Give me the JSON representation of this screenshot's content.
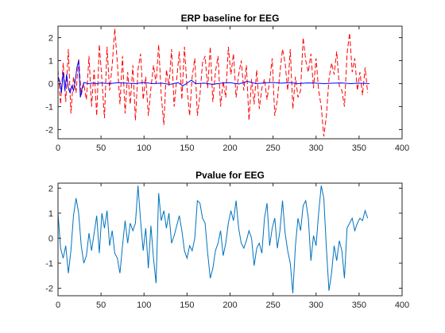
{
  "chart_data": [
    {
      "type": "line",
      "title": "ERP baseline for EEG",
      "xlabel": "",
      "ylabel": "",
      "xlim": [
        0,
        400
      ],
      "ylim": [
        -2.4,
        2.5
      ],
      "xticks": [
        0,
        50,
        100,
        150,
        200,
        250,
        300,
        350,
        400
      ],
      "yticks": [
        -2,
        -1,
        0,
        1,
        2
      ],
      "grid": false,
      "series": [
        {
          "color": "#ff0000",
          "style": "dashed",
          "x": [
            0,
            3,
            6,
            9,
            12,
            15,
            18,
            21,
            24,
            27,
            30,
            33,
            36,
            39,
            42,
            45,
            48,
            51,
            54,
            57,
            60,
            63,
            66,
            69,
            72,
            75,
            78,
            81,
            84,
            87,
            90,
            93,
            96,
            99,
            102,
            105,
            108,
            111,
            114,
            117,
            120,
            123,
            126,
            129,
            132,
            135,
            138,
            141,
            144,
            147,
            150,
            153,
            156,
            159,
            162,
            165,
            168,
            171,
            174,
            177,
            180,
            183,
            186,
            189,
            192,
            195,
            198,
            201,
            204,
            207,
            210,
            213,
            216,
            219,
            222,
            225,
            228,
            231,
            234,
            237,
            240,
            243,
            246,
            249,
            252,
            255,
            258,
            261,
            264,
            267,
            270,
            273,
            276,
            279,
            282,
            285,
            288,
            291,
            294,
            297,
            300,
            303,
            306,
            309,
            312,
            315,
            318,
            321,
            324,
            327,
            330,
            333,
            336,
            339,
            342,
            345,
            348,
            351,
            354,
            357,
            360
          ],
          "y": [
            0.6,
            -0.9,
            0.9,
            -0.8,
            1.5,
            -1.3,
            0.3,
            -0.4,
            1.1,
            -0.5,
            0.0,
            -0.7,
            1.2,
            -1.0,
            0.6,
            -1.4,
            1.7,
            0.2,
            -1.5,
            1.6,
            -0.3,
            0.8,
            2.4,
            0.9,
            -0.9,
            1.2,
            -1.3,
            0.5,
            -0.9,
            0.8,
            -1.6,
            0.6,
            1.3,
            -0.7,
            0.3,
            -1.4,
            -0.2,
            0.8,
            0.0,
            1.7,
            -0.5,
            -1.8,
            0.6,
            -0.1,
            1.5,
            -1.0,
            0.2,
            1.4,
            -0.7,
            1.6,
            -0.2,
            -1.4,
            0.3,
            1.1,
            -1.4,
            -0.5,
            0.9,
            1.2,
            -0.2,
            1.6,
            -0.8,
            0.5,
            1.2,
            -1.0,
            0.1,
            -0.6,
            1.6,
            0.4,
            1.3,
            -0.6,
            0.4,
            1.0,
            -0.3,
            0.8,
            -1.6,
            0.2,
            -0.9,
            0.6,
            -1.1,
            -0.2,
            0.2,
            -0.7,
            0.1,
            1.1,
            -1.4,
            -0.7,
            0.5,
            1.5,
            0.9,
            -0.3,
            1.5,
            -1.1,
            0.3,
            -0.6,
            -0.3,
            2.0,
            1.0,
            0.5,
            1.3,
            -0.2,
            1.1,
            -0.3,
            -1.0,
            -2.3,
            -1.4,
            0.2,
            0.9,
            0.4,
            1.4,
            -0.1,
            -0.3,
            -1.0,
            1.3,
            2.2,
            0.5,
            1.1,
            -0.3,
            0.5,
            -0.5,
            0.7,
            -0.4
          ]
        },
        {
          "color": "#0000ff",
          "style": "solid",
          "x": [
            0,
            2,
            4,
            6,
            8,
            10,
            12,
            14,
            16,
            18,
            20,
            22,
            24,
            26,
            28,
            30,
            35,
            40,
            45,
            50,
            60,
            70,
            80,
            90,
            100,
            110,
            120,
            130,
            140,
            145,
            150,
            155,
            160,
            170,
            180,
            190,
            200,
            210,
            220,
            230,
            240,
            250,
            260,
            270,
            280,
            290,
            300,
            310,
            320,
            330,
            340,
            350,
            362
          ],
          "y": [
            0.3,
            0.1,
            -0.4,
            0.5,
            -0.3,
            0.4,
            -0.2,
            -0.4,
            -0.1,
            -0.3,
            0.1,
            0.7,
            1.0,
            -0.6,
            -0.2,
            0.05,
            0.0,
            0.02,
            0.0,
            0.03,
            0.0,
            0.04,
            0.02,
            0.0,
            0.05,
            0.0,
            0.02,
            -0.03,
            0.04,
            -0.1,
            0.02,
            0.15,
            0.0,
            0.02,
            -0.03,
            0.02,
            0.04,
            -0.02,
            0.1,
            0.0,
            0.03,
            0.05,
            0.02,
            0.04,
            0.0,
            0.03,
            0.02,
            0.0,
            0.02,
            0.03,
            0.0,
            0.02,
            0.0
          ]
        }
      ]
    },
    {
      "type": "line",
      "title": "Pvalue for EEG",
      "xlabel": "",
      "ylabel": "",
      "xlim": [
        0,
        400
      ],
      "ylim": [
        -2.3,
        2.2
      ],
      "xticks": [
        0,
        50,
        100,
        150,
        200,
        250,
        300,
        350,
        400
      ],
      "yticks": [
        -2,
        -1,
        0,
        1,
        2
      ],
      "grid": false,
      "series": [
        {
          "color": "#0072bd",
          "style": "solid",
          "x": [
            0,
            3,
            6,
            9,
            12,
            15,
            18,
            21,
            24,
            27,
            30,
            33,
            36,
            39,
            42,
            45,
            48,
            51,
            54,
            57,
            60,
            63,
            66,
            69,
            72,
            75,
            78,
            81,
            84,
            87,
            90,
            93,
            96,
            99,
            102,
            105,
            108,
            111,
            114,
            117,
            120,
            123,
            126,
            129,
            132,
            135,
            138,
            141,
            144,
            147,
            150,
            153,
            156,
            159,
            162,
            165,
            168,
            171,
            174,
            177,
            180,
            183,
            186,
            189,
            192,
            195,
            198,
            201,
            204,
            207,
            210,
            213,
            216,
            219,
            222,
            225,
            228,
            231,
            234,
            237,
            240,
            243,
            246,
            249,
            252,
            255,
            258,
            261,
            264,
            267,
            270,
            273,
            276,
            279,
            282,
            285,
            288,
            291,
            294,
            297,
            300,
            303,
            306,
            309,
            312,
            315,
            318,
            321,
            324,
            327,
            330,
            333,
            336,
            339,
            342,
            345,
            348,
            351,
            354,
            357,
            360
          ],
          "y": [
            1.0,
            -0.4,
            -0.8,
            -0.3,
            -1.4,
            -0.5,
            0.9,
            1.6,
            1.0,
            -0.3,
            -1.0,
            -0.7,
            0.2,
            -0.5,
            0.2,
            0.9,
            -0.6,
            1.0,
            0.4,
            1.1,
            -0.3,
            0.3,
            -0.6,
            -0.8,
            -1.4,
            -0.3,
            0.7,
            -0.2,
            0.6,
            0.3,
            0.6,
            2.1,
            0.7,
            -0.5,
            0.4,
            -1.2,
            0.5,
            -0.8,
            -1.8,
            1.8,
            0.7,
            1.1,
            0.4,
            1.0,
            -0.2,
            0.1,
            0.5,
            0.9,
            0.3,
            -0.5,
            -0.8,
            -0.3,
            -0.5,
            0.0,
            1.5,
            1.4,
            0.8,
            0.6,
            -0.6,
            -1.6,
            -1.2,
            -0.5,
            -0.2,
            0.3,
            -0.7,
            -0.2,
            0.6,
            1.1,
            0.7,
            1.5,
            0.4,
            -0.2,
            -0.4,
            -0.1,
            0.3,
            0.0,
            -1.1,
            -0.4,
            -0.2,
            -0.6,
            0.8,
            1.4,
            -0.3,
            0.4,
            0.8,
            -0.4,
            0.3,
            1.5,
            0.2,
            -0.5,
            -1.0,
            -2.2,
            -0.3,
            0.8,
            0.3,
            1.3,
            1.5,
            0.8,
            -0.9,
            0.1,
            -0.3,
            1.0,
            2.1,
            1.6,
            -0.4,
            -2.1,
            -1.4,
            -0.3,
            -0.9,
            -0.1,
            -0.5,
            -1.6,
            0.4,
            0.6,
            0.8,
            0.3,
            0.6,
            0.8,
            0.7,
            1.1,
            0.8
          ]
        }
      ]
    }
  ]
}
